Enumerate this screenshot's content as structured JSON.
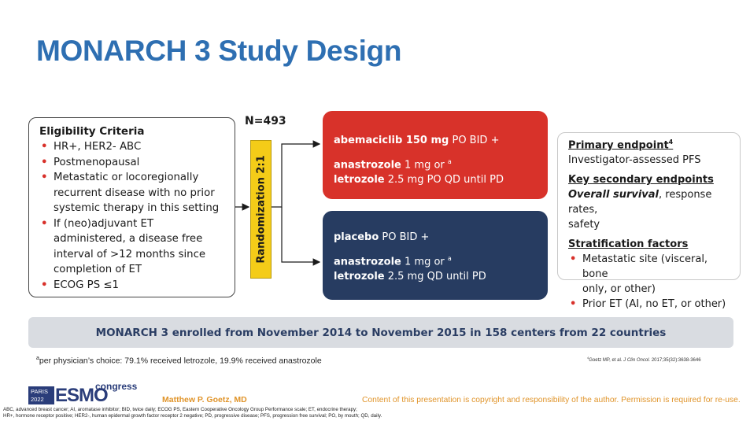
{
  "title": "MONARCH 3 Study Design",
  "eligibility": {
    "heading": "Eligibility Criteria",
    "items": [
      [
        "HR+, HER2- ABC"
      ],
      [
        "Postmenopausal"
      ],
      [
        "Metastatic or locoregionally",
        "recurrent disease with no prior",
        "systemic therapy in this setting"
      ],
      [
        "If (neo)adjuvant ET",
        "administered, a disease free",
        "interval of >12 months since",
        "completion of ET"
      ],
      [
        "ECOG PS ≤1"
      ]
    ]
  },
  "n_label": "N=493",
  "randomization": "Randomization 2:1",
  "arms": [
    {
      "drug_bold": "abemaciclib 150 mg",
      "drug_rest": " PO BID +",
      "line2_bold": "anastrozole",
      "line2_rest": " 1 mg or ",
      "line2_sup": "a",
      "line3_bold": "letrozole",
      "line3_rest": " 2.5 mg PO QD until PD",
      "color": "#d8322a"
    },
    {
      "drug_bold": "placebo",
      "drug_rest": " PO BID +",
      "line2_bold": "anastrozole",
      "line2_rest": " 1 mg or ",
      "line2_sup": "a",
      "line3_bold": "letrozole",
      "line3_rest": " 2.5 mg QD until PD",
      "color": "#273c61"
    }
  ],
  "endpoints": {
    "primary_heading": "Primary endpoint",
    "primary_sup": "4",
    "primary_text": "Investigator-assessed PFS",
    "secondary_heading": "Key secondary endpoints",
    "secondary_bold": "Overall survival",
    "secondary_rest": ", response rates,",
    "secondary_line2": "safety",
    "strat_heading": "Stratification factors",
    "strat_items": [
      [
        "Metastatic site (visceral, bone",
        "only, or other)"
      ],
      [
        "Prior ET (AI, no ET, or other)"
      ]
    ]
  },
  "banner": "MONARCH 3 enrolled from November 2014 to November 2015 in 158 centers from 22 countries",
  "footnote": {
    "sup": "a",
    "text": "per physician’s choice: 79.1% received letrozole, 19.9% received anastrozole"
  },
  "reference": {
    "sup": "4",
    "text_pre": "Goetz MP, et al. ",
    "journal": "J Clin Oncol.",
    "text_post": " 2017;35(32):3638-3646"
  },
  "logo": {
    "city": "PARIS",
    "year": "2022",
    "brand": "ESMO",
    "congress": "congress"
  },
  "presenter": "Matthew P. Goetz, MD",
  "copyright": "Content of this presentation is copyright and responsibility of the author. Permission is required for re-use.",
  "abbreviations": [
    "ABC, advanced breast cancer; AI, aromatase inhibitor; BID, twice daily; ECOG PS, Eastern Cooperative Oncology Group Performance scale; ET, endocrine therapy;",
    "HR+, hormone receptor positive; HER2-, human epidermal growth factor receptor 2 negative; PD, progressive disease; PFS, progression free survival; PO, by mouth; QD, daily."
  ]
}
